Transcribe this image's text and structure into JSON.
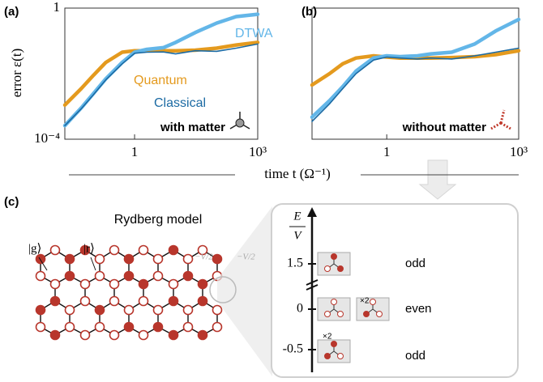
{
  "chart_data": [
    {
      "type": "line",
      "panel_label": "(a)",
      "annotation": "with matter",
      "y_label": "error ε(t)",
      "log_x": true,
      "log_y": true,
      "x": [
        0.02,
        0.05,
        0.1,
        0.2,
        0.5,
        1,
        2,
        5,
        10,
        30,
        100,
        300,
        1000
      ],
      "xlim": [
        0.02,
        1000
      ],
      "ylim": [
        0.0001,
        1
      ],
      "xticks": [
        1,
        {
          "value": 1000,
          "label": "10³"
        }
      ],
      "yticks": [
        1,
        {
          "value": 0.0001,
          "label": "10⁻⁴"
        }
      ],
      "series": [
        {
          "name": "DTWA",
          "color": "#63b6e8",
          "values": [
            0.00026,
            0.0009,
            0.0025,
            0.007,
            0.022,
            0.045,
            0.055,
            0.062,
            0.09,
            0.18,
            0.35,
            0.55,
            0.65
          ]
        },
        {
          "name": "Quantum",
          "color": "#e49a1e",
          "values": [
            0.0011,
            0.0035,
            0.009,
            0.022,
            0.045,
            0.05,
            0.05,
            0.05,
            0.05,
            0.052,
            0.06,
            0.075,
            0.09
          ]
        },
        {
          "name": "Classical",
          "color": "#1b6aa3",
          "values": [
            0.00026,
            0.00085,
            0.0023,
            0.0065,
            0.02,
            0.042,
            0.045,
            0.046,
            0.04,
            0.05,
            0.048,
            0.06,
            0.08
          ]
        }
      ]
    },
    {
      "type": "line",
      "panel_label": "(b)",
      "annotation": "without matter",
      "log_x": true,
      "log_y": true,
      "x": [
        0.02,
        0.05,
        0.1,
        0.2,
        0.5,
        1,
        2,
        5,
        10,
        30,
        100,
        300,
        1000
      ],
      "xlim": [
        0.02,
        1000
      ],
      "ylim": [
        0.0001,
        1
      ],
      "xticks": [
        1,
        {
          "value": 1000,
          "label": "10³"
        }
      ],
      "series": [
        {
          "color": "#63b6e8",
          "values": [
            0.00047,
            0.0015,
            0.004,
            0.012,
            0.03,
            0.035,
            0.033,
            0.035,
            0.04,
            0.045,
            0.08,
            0.2,
            0.45
          ]
        },
        {
          "color": "#e49a1e",
          "values": [
            0.0045,
            0.01,
            0.02,
            0.03,
            0.035,
            0.032,
            0.03,
            0.03,
            0.03,
            0.031,
            0.033,
            0.038,
            0.05
          ]
        },
        {
          "color": "#1b6aa3",
          "values": [
            0.00035,
            0.0012,
            0.0035,
            0.01,
            0.026,
            0.032,
            0.03,
            0.028,
            0.03,
            0.028,
            0.035,
            0.045,
            0.06
          ]
        }
      ]
    }
  ],
  "shared_x_label": "time t (Ω⁻¹)",
  "diagram": {
    "panel_label": "(c)",
    "title": "Rydberg model",
    "state_g": "|g⟩",
    "state_r": "|r⟩",
    "couplings": [
      "−V/2",
      "−V/2"
    ],
    "energy_axis_label_top": "E",
    "energy_axis_label_bottom": "V",
    "levels": [
      {
        "energy": 1.5,
        "parity": "odd"
      },
      {
        "energy": 0,
        "parity": "even",
        "multiplicity": "×2"
      },
      {
        "energy": -0.5,
        "parity": "odd",
        "multiplicity": "×2"
      }
    ]
  }
}
